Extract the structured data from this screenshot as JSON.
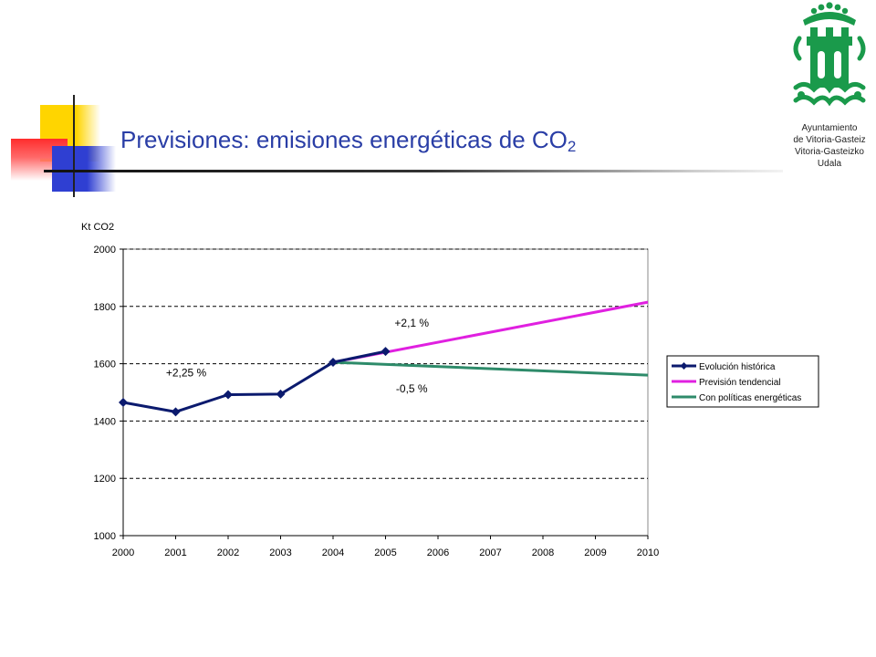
{
  "header": {
    "title_main": "Previsiones: emisiones energéticas de CO",
    "title_sub": "2"
  },
  "logo": {
    "lines": [
      "Ayuntamiento",
      "de Vitoria-Gasteiz",
      "Vitoria-Gasteizko",
      "Udala"
    ],
    "colors": {
      "green": "#1a9a4b"
    }
  },
  "chart_data": {
    "type": "line",
    "ylabel": "Kt CO2",
    "xlim": [
      2000,
      2010
    ],
    "ylim": [
      1000,
      2000
    ],
    "yticks": [
      "1000",
      "1200",
      "1400",
      "1600",
      "1800",
      "2000"
    ],
    "xticks": [
      "2000",
      "2001",
      "2002",
      "2003",
      "2004",
      "2005",
      "2006",
      "2007",
      "2008",
      "2009",
      "2010"
    ],
    "grid": "horizontal-dashed",
    "legend_position": "right",
    "series": [
      {
        "name": "Evolución histórica",
        "color": "#0b1a6e",
        "markers": "diamond",
        "x": [
          2000,
          2001,
          2002,
          2003,
          2004,
          2005
        ],
        "y": [
          1465,
          1432,
          1492,
          1494,
          1605,
          1643
        ]
      },
      {
        "name": "Previsión tendencial",
        "color": "#e020e0",
        "markers": "none",
        "x": [
          2004,
          2010
        ],
        "y": [
          1605,
          1815
        ]
      },
      {
        "name": "Con políticas energéticas",
        "color": "#2e8b6a",
        "markers": "none",
        "x": [
          2004,
          2010
        ],
        "y": [
          1605,
          1560
        ]
      }
    ],
    "annotations": [
      {
        "text": "+2,25 %",
        "x": 2001.2,
        "y": 1555
      },
      {
        "text": "+2,1 %",
        "x": 2005.5,
        "y": 1730
      },
      {
        "text": "-0,5 %",
        "x": 2005.5,
        "y": 1500
      }
    ]
  }
}
